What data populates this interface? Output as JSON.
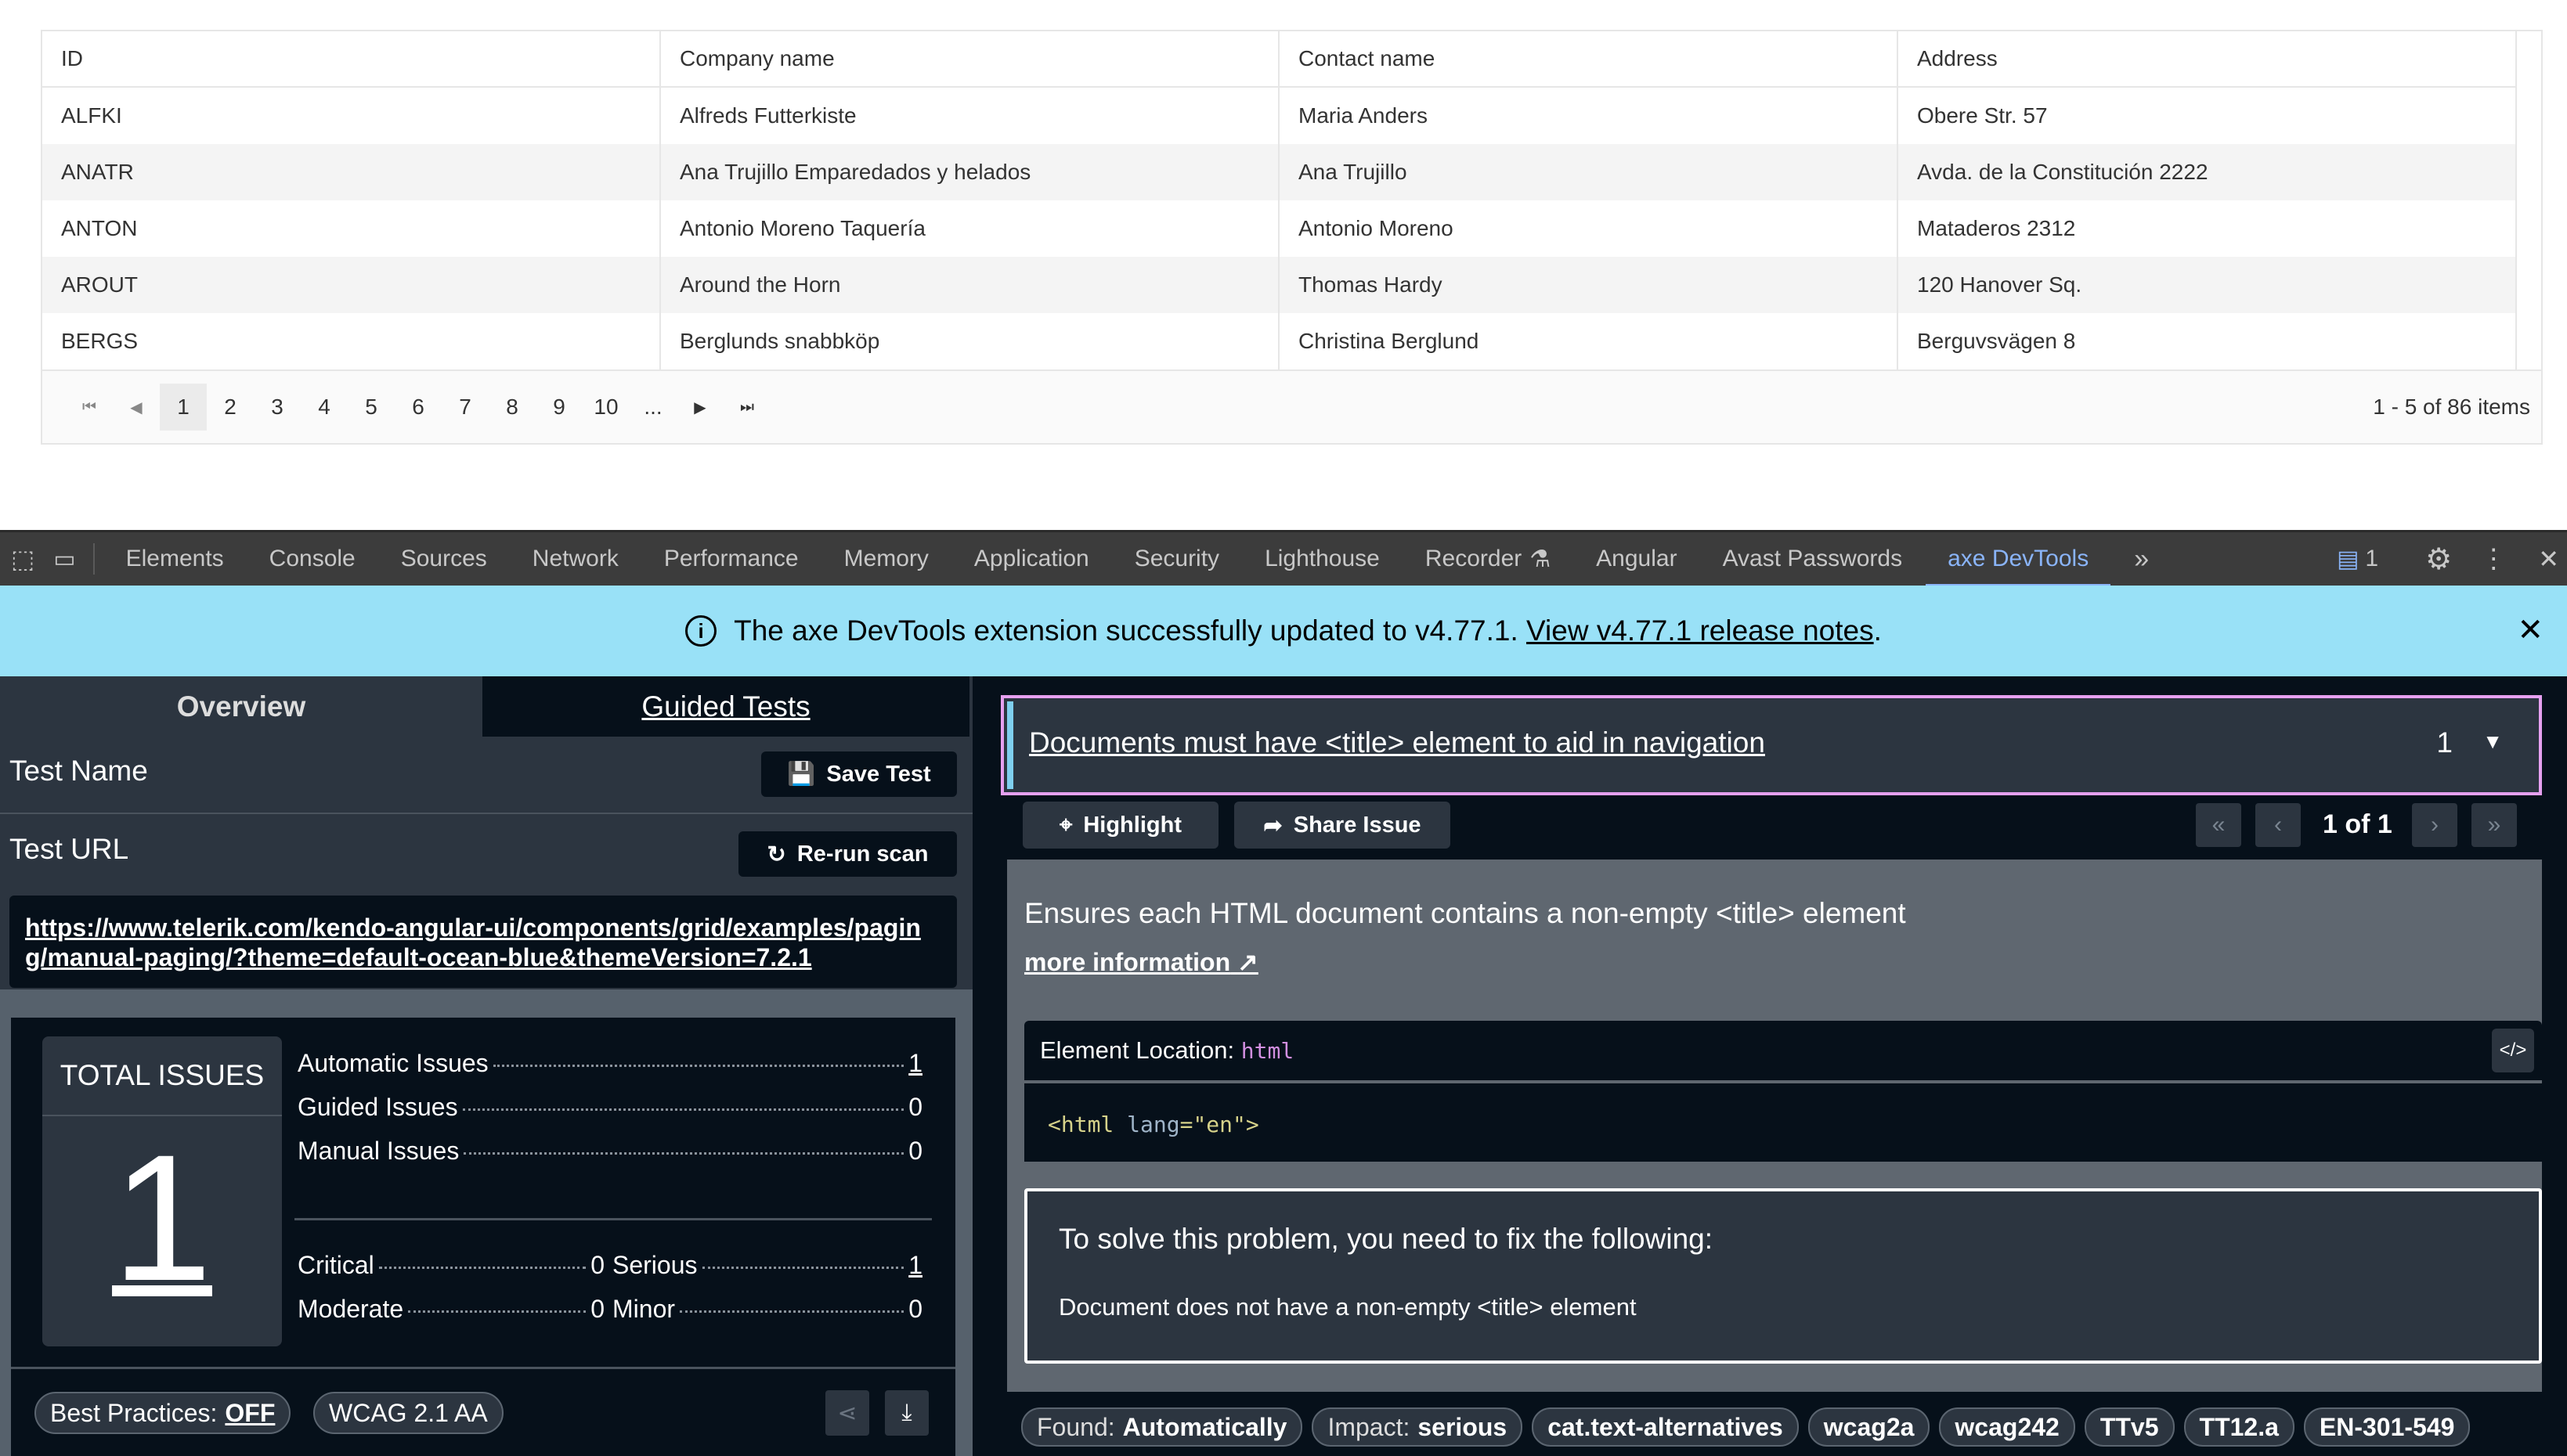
{
  "grid": {
    "columns": [
      "ID",
      "Company name",
      "Contact name",
      "Address"
    ],
    "rows": [
      [
        "ALFKI",
        "Alfreds Futterkiste",
        "Maria Anders",
        "Obere Str. 57"
      ],
      [
        "ANATR",
        "Ana Trujillo Emparedados y helados",
        "Ana Trujillo",
        "Avda. de la Constitución 2222"
      ],
      [
        "ANTON",
        "Antonio Moreno Taquería",
        "Antonio Moreno",
        "Mataderos 2312"
      ],
      [
        "AROUT",
        "Around the Horn",
        "Thomas Hardy",
        "120 Hanover Sq."
      ],
      [
        "BERGS",
        "Berglunds snabbköp",
        "Christina Berglund",
        "Berguvsvägen 8"
      ]
    ],
    "pager": {
      "pages": [
        "1",
        "2",
        "3",
        "4",
        "5",
        "6",
        "7",
        "8",
        "9",
        "10",
        "..."
      ],
      "current": "1",
      "info": "1 - 5 of 86 items"
    }
  },
  "devtools": {
    "tabs": [
      "Elements",
      "Console",
      "Sources",
      "Network",
      "Performance",
      "Memory",
      "Application",
      "Security",
      "Lighthouse",
      "Recorder",
      "Angular",
      "Avast Passwords",
      "axe DevTools"
    ],
    "active_tab": "axe DevTools",
    "issues_count": "1",
    "accent": "#8ab4f8"
  },
  "banner": {
    "text": "The axe DevTools extension successfully updated to v4.77.1.",
    "link": "View v4.77.1 release notes",
    "tail": "."
  },
  "left": {
    "tabs": {
      "overview": "Overview",
      "guided": "Guided Tests"
    },
    "test_name_label": "Test Name",
    "save_test": "Save Test",
    "test_url_label": "Test URL",
    "rerun": "Re-run scan",
    "url": "https://www.telerik.com/kendo-angular-ui/components/grid/examples/paging/manual-paging/?theme=default-ocean-blue&themeVersion=7.2.1",
    "total_label": "TOTAL ISSUES",
    "total": "1",
    "stats": [
      {
        "label": "Automatic Issues",
        "value": "1"
      },
      {
        "label": "Guided Issues",
        "value": "0"
      },
      {
        "label": "Manual Issues",
        "value": "0"
      }
    ],
    "severity": [
      {
        "label": "Critical",
        "value": "0"
      },
      {
        "label": "Serious",
        "value": "1"
      },
      {
        "label": "Moderate",
        "value": "0"
      },
      {
        "label": "Minor",
        "value": "0"
      }
    ],
    "best_practices_label": "Best Practices:",
    "best_practices_value": "OFF",
    "standard": "WCAG 2.1 AA"
  },
  "issue": {
    "title": "Documents must have <title> element to aid in navigation",
    "count": "1",
    "highlight": "Highlight",
    "share": "Share Issue",
    "position": "1 of 1",
    "description": "Ensures each HTML document contains a non-empty <title> element",
    "more_info": "more information",
    "location_label": "Element Location:",
    "location_value": "html",
    "code": {
      "tag": "<html",
      "attr": "lang",
      "eq": "=",
      "val": "\"en\"",
      "close": ">"
    },
    "fix_heading": "To solve this problem, you need to fix the following:",
    "fix_item": "Document does not have a non-empty <title> element",
    "found_label": "Found:",
    "found_value": "Automatically",
    "impact_label": "Impact:",
    "impact_value": "serious",
    "tags": [
      "cat.text-alternatives",
      "wcag2a",
      "wcag242",
      "TTv5",
      "TT12.a",
      "EN-301-549"
    ],
    "highlight_border": "#e6a0f0"
  }
}
